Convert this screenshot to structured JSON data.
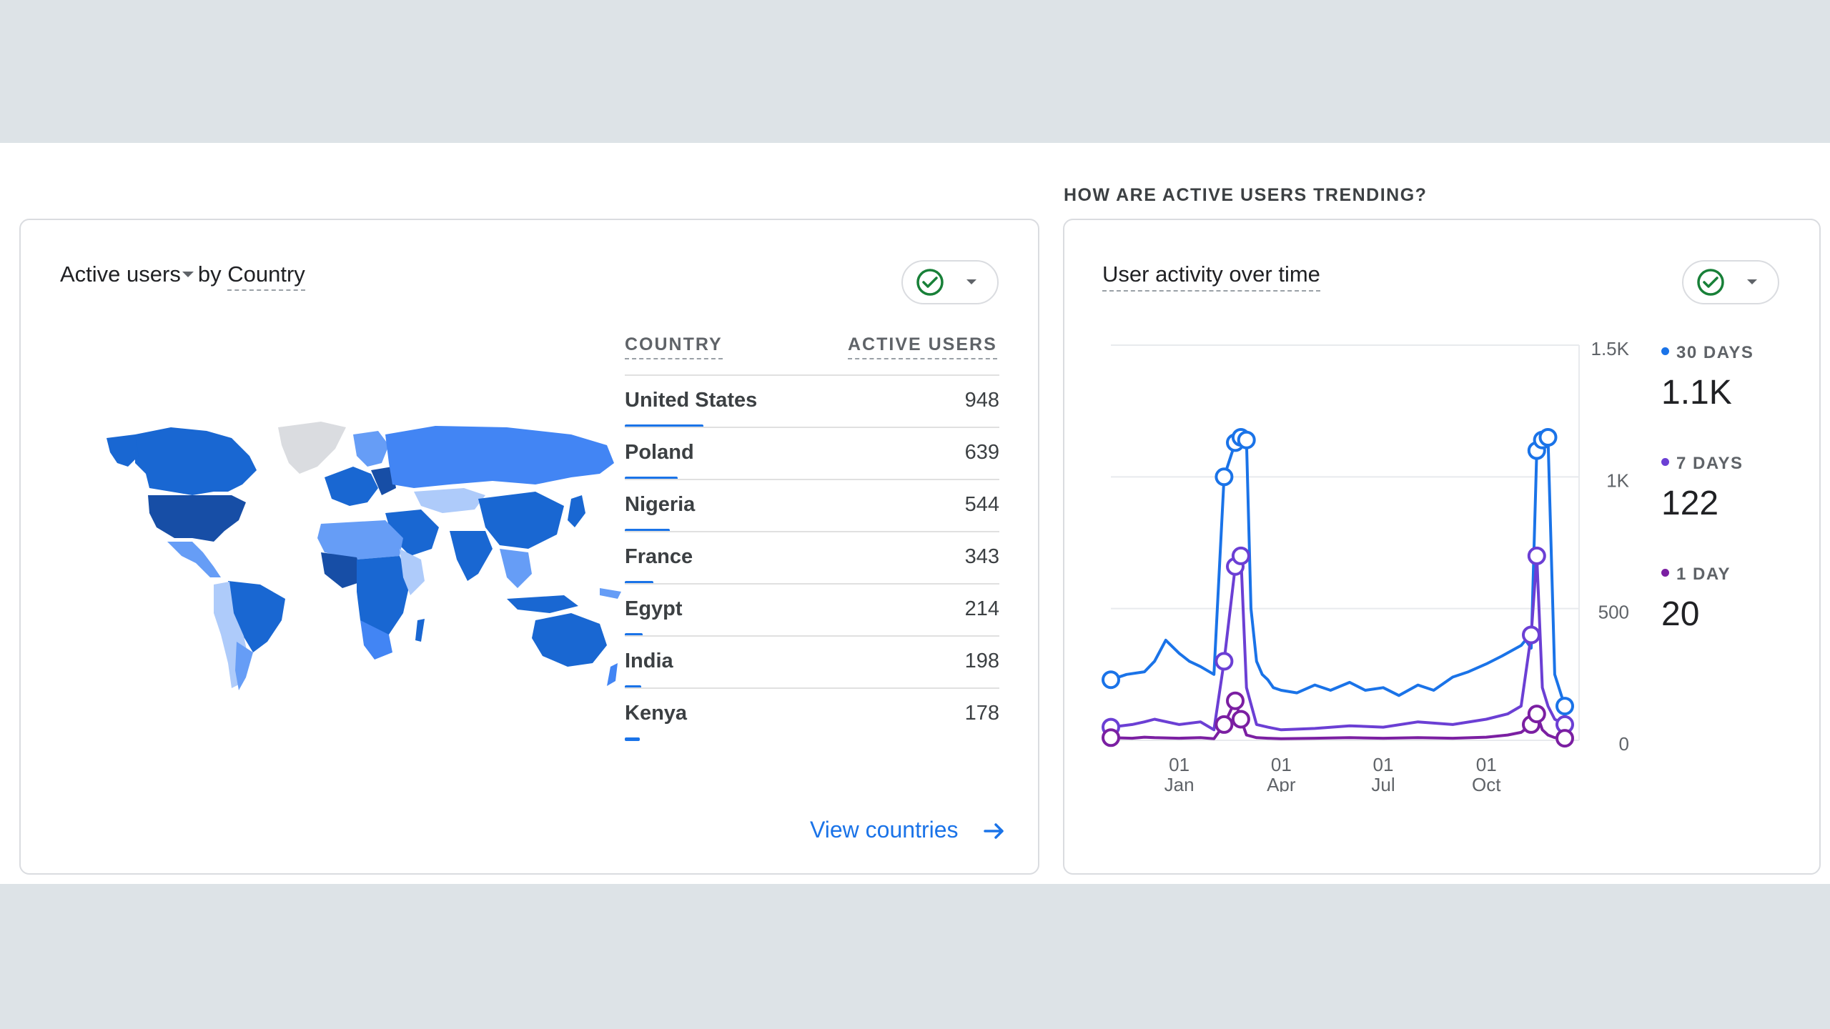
{
  "section": {
    "heading": "HOW ARE ACTIVE USERS TRENDING?"
  },
  "country_card": {
    "metric_label": "Active users",
    "by_label": "by",
    "dimension_label": "Country",
    "columns": {
      "country": "COUNTRY",
      "active_users": "ACTIVE USERS"
    },
    "rows": [
      {
        "country": "United States",
        "value": "948",
        "share": 1.0
      },
      {
        "country": "Poland",
        "value": "639",
        "share": 0.674
      },
      {
        "country": "Nigeria",
        "value": "544",
        "share": 0.574
      },
      {
        "country": "France",
        "value": "343",
        "share": 0.362
      },
      {
        "country": "Egypt",
        "value": "214",
        "share": 0.226
      },
      {
        "country": "India",
        "value": "198",
        "share": 0.209
      },
      {
        "country": "Kenya",
        "value": "178",
        "share": 0.188
      }
    ],
    "view_link": "View countries",
    "colors": {
      "accent": "#1a73e8",
      "map_dark": "#174ea6",
      "map_mid": "#1967d2",
      "map_light": "#669df6",
      "map_pale": "#aecbfa",
      "map_none": "#dadce0"
    }
  },
  "activity_card": {
    "title": "User activity over time",
    "legend": [
      {
        "label": "30 DAYS",
        "value": "1.1K",
        "color": "#1a73e8"
      },
      {
        "label": "7 DAYS",
        "value": "122",
        "color": "#6b3fd4"
      },
      {
        "label": "1 DAY",
        "value": "20",
        "color": "#7b1fa2"
      }
    ]
  },
  "chart_data": {
    "type": "line",
    "title": "User activity over time",
    "xlabel": "",
    "ylabel": "",
    "ylim": [
      0,
      1500
    ],
    "y_ticks": [
      "0",
      "500",
      "1K",
      "1.5K"
    ],
    "y_tick_values": [
      0,
      500,
      1000,
      1500
    ],
    "x_ticks": [
      {
        "day": "01",
        "month": "Jan"
      },
      {
        "day": "01",
        "month": "Apr"
      },
      {
        "day": "01",
        "month": "Jul"
      },
      {
        "day": "01",
        "month": "Oct"
      }
    ],
    "x_tick_dates": [
      "2024-01-01",
      "2024-04-01",
      "2024-07-01",
      "2024-10-01"
    ],
    "x_range": [
      "2023-11-01",
      "2024-12-10"
    ],
    "grid": true,
    "legend_position": "right",
    "series": [
      {
        "name": "30 DAYS",
        "color": "#1a73e8",
        "x": [
          "2023-11-01",
          "2023-11-15",
          "2023-12-01",
          "2023-12-10",
          "2023-12-20",
          "2024-01-01",
          "2024-01-10",
          "2024-01-20",
          "2024-02-01",
          "2024-02-10",
          "2024-02-20",
          "2024-02-25",
          "2024-03-01",
          "2024-03-05",
          "2024-03-10",
          "2024-03-15",
          "2024-03-20",
          "2024-03-25",
          "2024-04-01",
          "2024-04-15",
          "2024-05-01",
          "2024-05-15",
          "2024-06-01",
          "2024-06-15",
          "2024-07-01",
          "2024-07-15",
          "2024-08-01",
          "2024-08-15",
          "2024-09-01",
          "2024-09-15",
          "2024-10-01",
          "2024-10-15",
          "2024-11-01",
          "2024-11-05",
          "2024-11-10",
          "2024-11-15",
          "2024-11-20",
          "2024-11-25",
          "2024-12-01",
          "2024-12-10"
        ],
        "y": [
          230,
          250,
          260,
          300,
          380,
          330,
          300,
          280,
          250,
          1000,
          1130,
          1150,
          1140,
          500,
          300,
          250,
          230,
          200,
          190,
          180,
          210,
          190,
          220,
          190,
          200,
          170,
          210,
          190,
          240,
          260,
          290,
          320,
          360,
          380,
          350,
          1100,
          1140,
          1150,
          250,
          130
        ]
      },
      {
        "name": "7 DAYS",
        "color": "#6b3fd4",
        "x": [
          "2023-11-01",
          "2023-11-20",
          "2023-12-01",
          "2023-12-10",
          "2024-01-01",
          "2024-01-20",
          "2024-02-01",
          "2024-02-10",
          "2024-02-20",
          "2024-02-25",
          "2024-03-01",
          "2024-03-10",
          "2024-03-20",
          "2024-04-01",
          "2024-05-01",
          "2024-06-01",
          "2024-07-01",
          "2024-08-01",
          "2024-09-01",
          "2024-10-01",
          "2024-10-20",
          "2024-11-01",
          "2024-11-10",
          "2024-11-15",
          "2024-11-20",
          "2024-11-25",
          "2024-12-01",
          "2024-12-10"
        ],
        "y": [
          50,
          60,
          70,
          80,
          60,
          70,
          40,
          300,
          660,
          700,
          200,
          60,
          50,
          40,
          45,
          55,
          50,
          70,
          60,
          80,
          100,
          130,
          400,
          700,
          200,
          130,
          80,
          60
        ]
      },
      {
        "name": "1 DAY",
        "color": "#7b1fa2",
        "x": [
          "2023-11-01",
          "2023-11-20",
          "2023-12-01",
          "2023-12-10",
          "2024-01-01",
          "2024-01-20",
          "2024-02-01",
          "2024-02-10",
          "2024-02-20",
          "2024-02-25",
          "2024-03-01",
          "2024-03-10",
          "2024-03-20",
          "2024-04-01",
          "2024-05-01",
          "2024-06-01",
          "2024-07-01",
          "2024-08-01",
          "2024-09-01",
          "2024-10-01",
          "2024-10-20",
          "2024-11-01",
          "2024-11-10",
          "2024-11-15",
          "2024-11-20",
          "2024-11-25",
          "2024-12-01",
          "2024-12-10"
        ],
        "y": [
          10,
          8,
          12,
          10,
          8,
          10,
          6,
          60,
          150,
          80,
          20,
          10,
          8,
          6,
          8,
          10,
          8,
          10,
          8,
          12,
          20,
          30,
          60,
          100,
          40,
          20,
          10,
          8
        ]
      }
    ]
  }
}
